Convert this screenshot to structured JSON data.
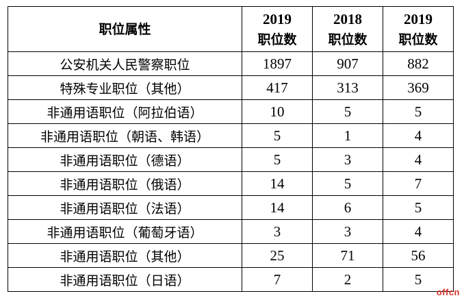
{
  "table": {
    "header": {
      "attribute": "职位属性",
      "col1": {
        "year": "2019",
        "label": "职位数"
      },
      "col2": {
        "year": "2018",
        "label": "职位数"
      },
      "col3": {
        "year": "2019",
        "label": "职位数"
      }
    },
    "rows": [
      {
        "name": "公安机关人民警察职位",
        "v1": "1897",
        "v2": "907",
        "v3": "882"
      },
      {
        "name": "特殊专业职位（其他）",
        "v1": "417",
        "v2": "313",
        "v3": "369"
      },
      {
        "name": "非通用语职位（阿拉伯语）",
        "v1": "10",
        "v2": "5",
        "v3": "5"
      },
      {
        "name": "非通用语职位（朝语、韩语）",
        "v1": "5",
        "v2": "1",
        "v3": "4"
      },
      {
        "name": "非通用语职位（德语）",
        "v1": "5",
        "v2": "3",
        "v3": "4"
      },
      {
        "name": "非通用语职位（俄语）",
        "v1": "14",
        "v2": "5",
        "v3": "7"
      },
      {
        "name": "非通用语职位（法语）",
        "v1": "14",
        "v2": "6",
        "v3": "5"
      },
      {
        "name": "非通用语职位（葡萄牙语）",
        "v1": "3",
        "v2": "3",
        "v3": "4"
      },
      {
        "name": "非通用语职位（其他）",
        "v1": "25",
        "v2": "71",
        "v3": "56"
      },
      {
        "name": "非通用语职位（日语）",
        "v1": "7",
        "v2": "2",
        "v3": "5"
      }
    ]
  },
  "watermark": {
    "text": "offcn",
    "color": "#d9342b"
  }
}
